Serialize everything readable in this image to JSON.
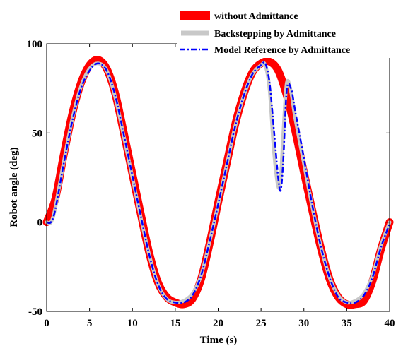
{
  "chart_data": {
    "type": "line",
    "xlabel": "Time (s)",
    "ylabel": "Robot angle (deg)",
    "xlim": [
      0,
      40
    ],
    "ylim": [
      -50,
      100
    ],
    "x_ticks": [
      0,
      5,
      10,
      15,
      20,
      25,
      30,
      35,
      40
    ],
    "y_ticks": [
      -50,
      0,
      50,
      100
    ],
    "grid": false,
    "legend_position": "top-right",
    "series": [
      {
        "name": "without Admittance",
        "color": "#ff0000",
        "style": "solid-thick",
        "x": [
          0,
          1,
          2,
          3,
          4,
          5,
          6,
          7,
          8,
          9,
          10,
          11,
          12,
          13,
          14,
          15,
          16,
          17,
          18,
          19,
          20,
          21,
          22,
          23,
          24,
          25,
          26,
          27,
          28,
          29,
          30,
          31,
          32,
          33,
          34,
          35,
          36,
          37,
          38,
          39,
          40
        ],
        "values": [
          0,
          13,
          38,
          61,
          78,
          88,
          91,
          86,
          72,
          50,
          27,
          4,
          -18,
          -34,
          -42,
          -45,
          -46,
          -43,
          -32,
          -12,
          11,
          33,
          55,
          72,
          84,
          89,
          90,
          85,
          71,
          51,
          28,
          6,
          -15,
          -32,
          -42,
          -46,
          -46,
          -44,
          -33,
          -15,
          0
        ]
      },
      {
        "name": "Backstepping by Admittance",
        "color": "#c8c8c8",
        "style": "solid-medium",
        "x": [
          0,
          0.5,
          1,
          2,
          3,
          4,
          5,
          6,
          7,
          8,
          9,
          10,
          11,
          12,
          13,
          14,
          15,
          16,
          17,
          18,
          19,
          20,
          21,
          22,
          23,
          24,
          25,
          25.5,
          26,
          26.5,
          27,
          27.3,
          27.6,
          28,
          28.5,
          29,
          30,
          31,
          32,
          33,
          34,
          35,
          36,
          37,
          38,
          39,
          40
        ],
        "values": [
          0,
          0,
          8,
          34,
          58,
          76,
          86,
          89,
          85,
          70,
          48,
          25,
          2,
          -19,
          -35,
          -43,
          -45,
          -44,
          -40,
          -30,
          -11,
          10,
          32,
          54,
          71,
          83,
          88,
          88,
          74,
          40,
          20,
          25,
          50,
          78,
          73,
          58,
          33,
          8,
          -14,
          -31,
          -41,
          -45,
          -44,
          -40,
          -30,
          -13,
          0
        ]
      },
      {
        "name": "Model Reference by Admittance",
        "color": "#0000ff",
        "style": "dash-dot",
        "x": [
          0,
          0.5,
          1,
          2,
          3,
          4,
          5,
          6,
          7,
          8,
          9,
          10,
          11,
          12,
          13,
          14,
          15,
          16,
          17,
          18,
          19,
          20,
          21,
          22,
          23,
          24,
          25,
          25.5,
          26,
          26.5,
          27,
          27.3,
          27.6,
          28,
          28.5,
          29,
          30,
          31,
          32,
          33,
          34,
          35,
          36,
          37,
          38,
          39,
          40
        ],
        "values": [
          0,
          0,
          7,
          33,
          57,
          75,
          85,
          89,
          85,
          71,
          49,
          26,
          3,
          -19,
          -35,
          -43,
          -45,
          -45,
          -41,
          -30,
          -11,
          10,
          32,
          54,
          71,
          83,
          88,
          89,
          78,
          52,
          25,
          18,
          35,
          74,
          75,
          62,
          36,
          9,
          -14,
          -31,
          -42,
          -45,
          -45,
          -41,
          -31,
          -14,
          -1
        ]
      }
    ]
  }
}
